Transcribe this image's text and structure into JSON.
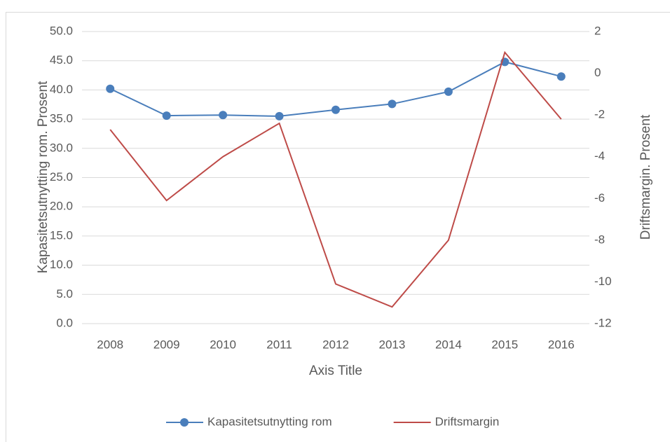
{
  "chart_data": {
    "type": "line",
    "categories": [
      "2008",
      "2009",
      "2010",
      "2011",
      "2012",
      "2013",
      "2014",
      "2015",
      "2016"
    ],
    "series": [
      {
        "name": "Kapasitetsutnytting rom",
        "color": "#4a7ebb",
        "marker": "circle",
        "values": [
          40.2,
          35.6,
          35.7,
          35.5,
          36.6,
          37.6,
          39.7,
          44.8,
          42.3
        ]
      },
      {
        "name": "Driftsmargin",
        "color": "#be4b48",
        "axis": "y2",
        "values": [
          -2.7,
          -6.1,
          -4.0,
          -2.4,
          -10.1,
          -11.2,
          -8.0,
          1.0,
          -2.2
        ]
      }
    ],
    "xlabel": "Axis Title",
    "ylabel": "Kapasitetsutnytting rom. Prosent",
    "y2label": "Driftsmargin. Prosent",
    "ylim": [
      0,
      50
    ],
    "yticks": [
      {
        "value": 0,
        "label": "0.0"
      },
      {
        "value": 5,
        "label": "5.0"
      },
      {
        "value": 10,
        "label": "10.0"
      },
      {
        "value": 15,
        "label": "15.0"
      },
      {
        "value": 20,
        "label": "20.0"
      },
      {
        "value": 25,
        "label": "25.0"
      },
      {
        "value": 30,
        "label": "30.0"
      },
      {
        "value": 35,
        "label": "35.0"
      },
      {
        "value": 40,
        "label": "40.0"
      },
      {
        "value": 45,
        "label": "45.0"
      },
      {
        "value": 50,
        "label": "50.0"
      }
    ],
    "y2lim": [
      -12,
      2
    ],
    "y2ticks": [
      -12,
      -10,
      -8,
      -6,
      -4,
      -2,
      0,
      2
    ],
    "grid": true,
    "legend": "bottom"
  }
}
